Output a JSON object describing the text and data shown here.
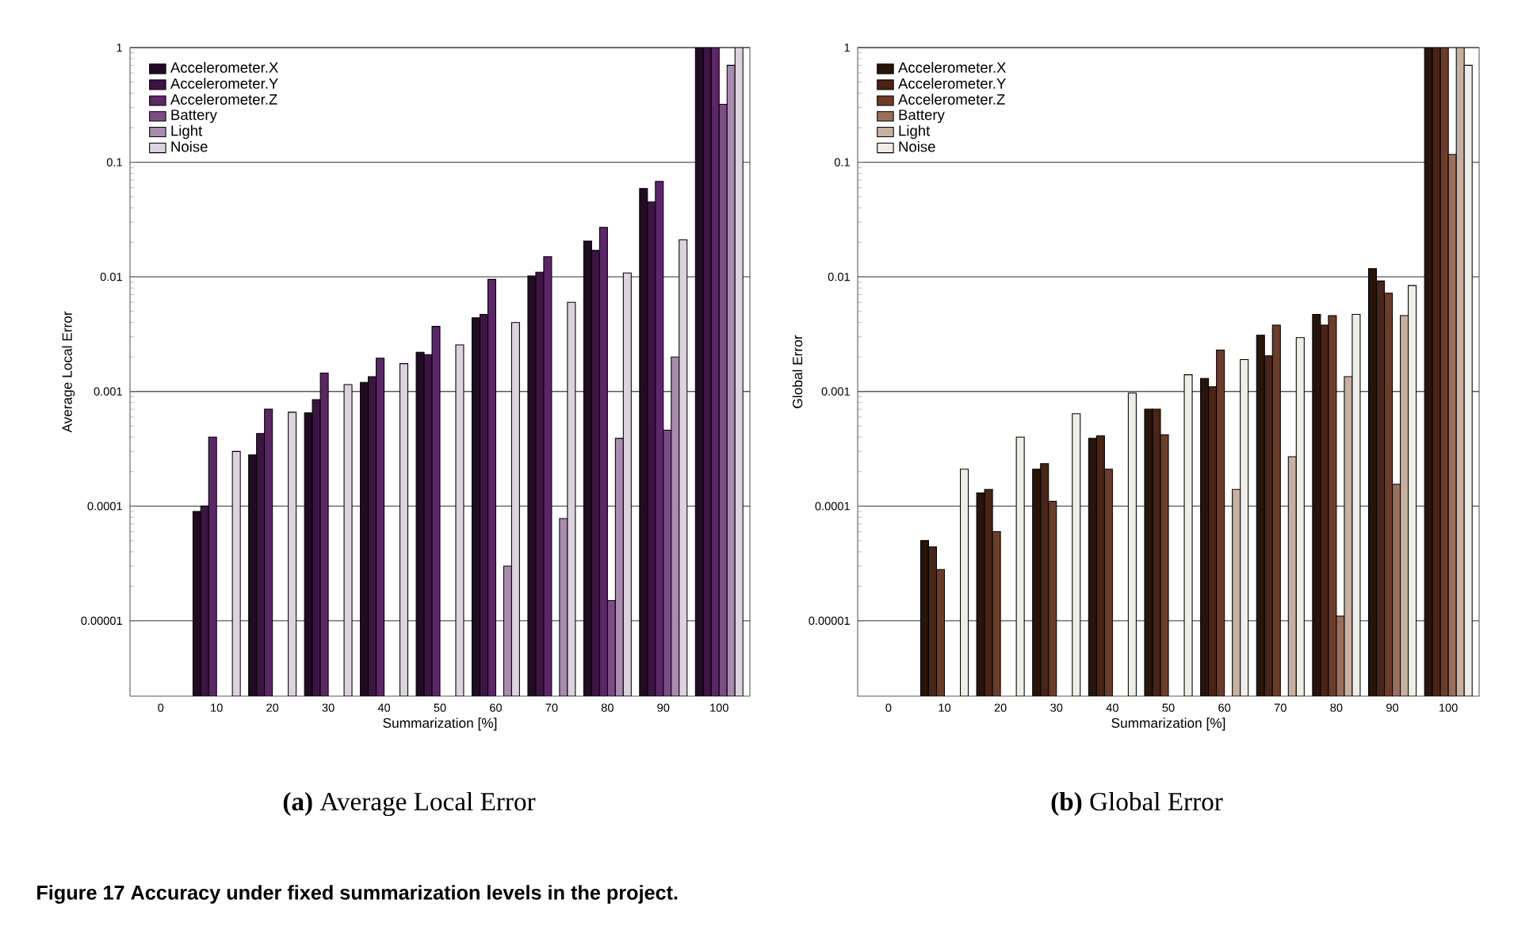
{
  "chart_data": [
    {
      "type": "bar",
      "title": "**(a)** Average Local Error",
      "xlabel": "Summarization [%]",
      "ylabel": "Average Local Error",
      "categories": [
        "0",
        "10",
        "20",
        "30",
        "40",
        "50",
        "60",
        "70",
        "80",
        "90",
        "100"
      ],
      "series": [
        {
          "name": "Accelerometer.X",
          "color": "#220a24",
          "values": [
            null,
            9e-05,
            0.00028,
            0.00065,
            0.0012,
            0.0022,
            0.0044,
            0.0102,
            0.0205,
            0.059,
            1
          ]
        },
        {
          "name": "Accelerometer.Y",
          "color": "#3e1444",
          "values": [
            null,
            0.0001,
            0.00043,
            0.00085,
            0.00135,
            0.0021,
            0.0047,
            0.011,
            0.017,
            0.045,
            1
          ]
        },
        {
          "name": "Accelerometer.Z",
          "color": "#5c2668",
          "values": [
            null,
            0.0004,
            0.0007,
            0.00145,
            0.00195,
            0.0037,
            0.0095,
            0.015,
            0.027,
            0.068,
            1
          ]
        },
        {
          "name": "Battery",
          "color": "#7c4c84",
          "values": [
            null,
            null,
            null,
            null,
            null,
            null,
            null,
            null,
            1.5e-05,
            0.00046,
            0.32
          ]
        },
        {
          "name": "Light",
          "color": "#a98bb0",
          "values": [
            null,
            null,
            null,
            null,
            null,
            null,
            3e-05,
            7.8e-05,
            0.00039,
            0.002,
            0.7
          ]
        },
        {
          "name": "Noise",
          "color": "#ddd2e0",
          "values": [
            null,
            0.0003,
            0.00066,
            0.00115,
            0.00175,
            0.00255,
            0.004,
            0.006,
            0.0108,
            0.021,
            1
          ]
        }
      ],
      "log": true,
      "ylim": [
        2.2e-06,
        1
      ],
      "yticks": [
        {
          "value": 1e-05,
          "label": "0.00001"
        },
        {
          "value": 0.0001,
          "label": "0.0001"
        },
        {
          "value": 0.001,
          "label": "0.001"
        },
        {
          "value": 0.01,
          "label": "0.01"
        },
        {
          "value": 0.1,
          "label": "0.1"
        },
        {
          "value": 1,
          "label": "1"
        }
      ],
      "grid": "y",
      "legend": "top left",
      "annotations": [
        "Figure 17 Accuracy under fixed summarization levels in the project."
      ]
    },
    {
      "type": "bar",
      "title": "**(b)** Global Error",
      "xlabel": "Summarization [%]",
      "ylabel": "Global Error",
      "categories": [
        "0",
        "10",
        "20",
        "30",
        "40",
        "50",
        "60",
        "70",
        "80",
        "90",
        "100"
      ],
      "series": [
        {
          "name": "Accelerometer.X",
          "color": "#2a140a",
          "values": [
            null,
            5e-05,
            0.00013,
            0.00021,
            0.00039,
            0.0007,
            0.0013,
            0.0031,
            0.0047,
            0.0118,
            1
          ]
        },
        {
          "name": "Accelerometer.Y",
          "color": "#4a2414",
          "values": [
            null,
            4.4e-05,
            0.00014,
            0.000235,
            0.00041,
            0.0007,
            0.0011,
            0.00205,
            0.0038,
            0.0092,
            1
          ]
        },
        {
          "name": "Accelerometer.Z",
          "color": "#6e3c26",
          "values": [
            null,
            2.8e-05,
            6e-05,
            0.00011,
            0.00021,
            0.00042,
            0.0023,
            0.0038,
            0.0046,
            0.0072,
            1
          ]
        },
        {
          "name": "Battery",
          "color": "#9a705a",
          "values": [
            null,
            null,
            null,
            null,
            null,
            null,
            null,
            null,
            1.1e-05,
            0.000155,
            0.117
          ]
        },
        {
          "name": "Light",
          "color": "#c8b0a0",
          "values": [
            null,
            null,
            null,
            null,
            null,
            null,
            0.00014,
            0.00027,
            0.00135,
            0.0046,
            1
          ]
        },
        {
          "name": "Noise",
          "color": "#f0ece8",
          "values": [
            null,
            0.00021,
            0.0004,
            0.00064,
            0.00097,
            0.0014,
            0.0019,
            0.00295,
            0.0047,
            0.0084,
            0.7
          ]
        }
      ],
      "log": true,
      "ylim": [
        2.2e-06,
        1
      ],
      "yticks": [
        {
          "value": 1e-05,
          "label": "0.00001"
        },
        {
          "value": 0.0001,
          "label": "0.0001"
        },
        {
          "value": 0.001,
          "label": "0.001"
        },
        {
          "value": 0.01,
          "label": "0.01"
        },
        {
          "value": 0.1,
          "label": "0.1"
        },
        {
          "value": 1,
          "label": "1"
        }
      ],
      "grid": "y",
      "legend": "top left"
    }
  ]
}
